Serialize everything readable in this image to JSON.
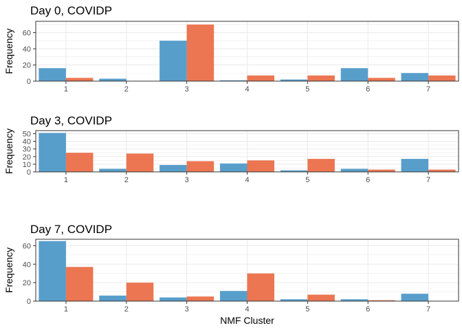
{
  "chart_data": [
    {
      "type": "bar",
      "title": "Day 0, COVIDP",
      "ylabel": "Frequency",
      "xlabel": "",
      "categories": [
        "1",
        "2",
        "3",
        "4",
        "5",
        "6",
        "7"
      ],
      "ylim": [
        0,
        74
      ],
      "yticks": [
        0,
        20,
        40,
        60
      ],
      "series": [
        {
          "values": [
            16,
            3,
            50,
            1,
            2,
            16,
            10
          ]
        },
        {
          "values": [
            4,
            0,
            70,
            7,
            7,
            4,
            7
          ]
        }
      ]
    },
    {
      "type": "bar",
      "title": "Day 3, COVIDP",
      "ylabel": "Frequency",
      "xlabel": "",
      "categories": [
        "1",
        "2",
        "3",
        "4",
        "5",
        "6",
        "7"
      ],
      "ylim": [
        0,
        54
      ],
      "yticks": [
        0,
        10,
        20,
        30,
        40,
        50
      ],
      "series": [
        {
          "values": [
            51,
            4,
            9,
            11,
            2,
            4,
            17
          ]
        },
        {
          "values": [
            25,
            24,
            14,
            15,
            17,
            3,
            3
          ]
        }
      ]
    },
    {
      "type": "bar",
      "title": "Day 7, COVIDP",
      "ylabel": "Frequency",
      "xlabel": "NMF Cluster",
      "categories": [
        "1",
        "2",
        "3",
        "4",
        "5",
        "6",
        "7"
      ],
      "ylim": [
        0,
        67
      ],
      "yticks": [
        0,
        20,
        40,
        60
      ],
      "series": [
        {
          "values": [
            65,
            6,
            4,
            11,
            2,
            2,
            8
          ]
        },
        {
          "values": [
            37,
            20,
            5,
            30,
            7,
            1,
            0
          ]
        }
      ]
    }
  ],
  "colors": {
    "series_1": "#579ECB",
    "series_2": "#EB7651",
    "grid": "#EBEBEB",
    "panel_border": "#333333"
  },
  "grid": true
}
